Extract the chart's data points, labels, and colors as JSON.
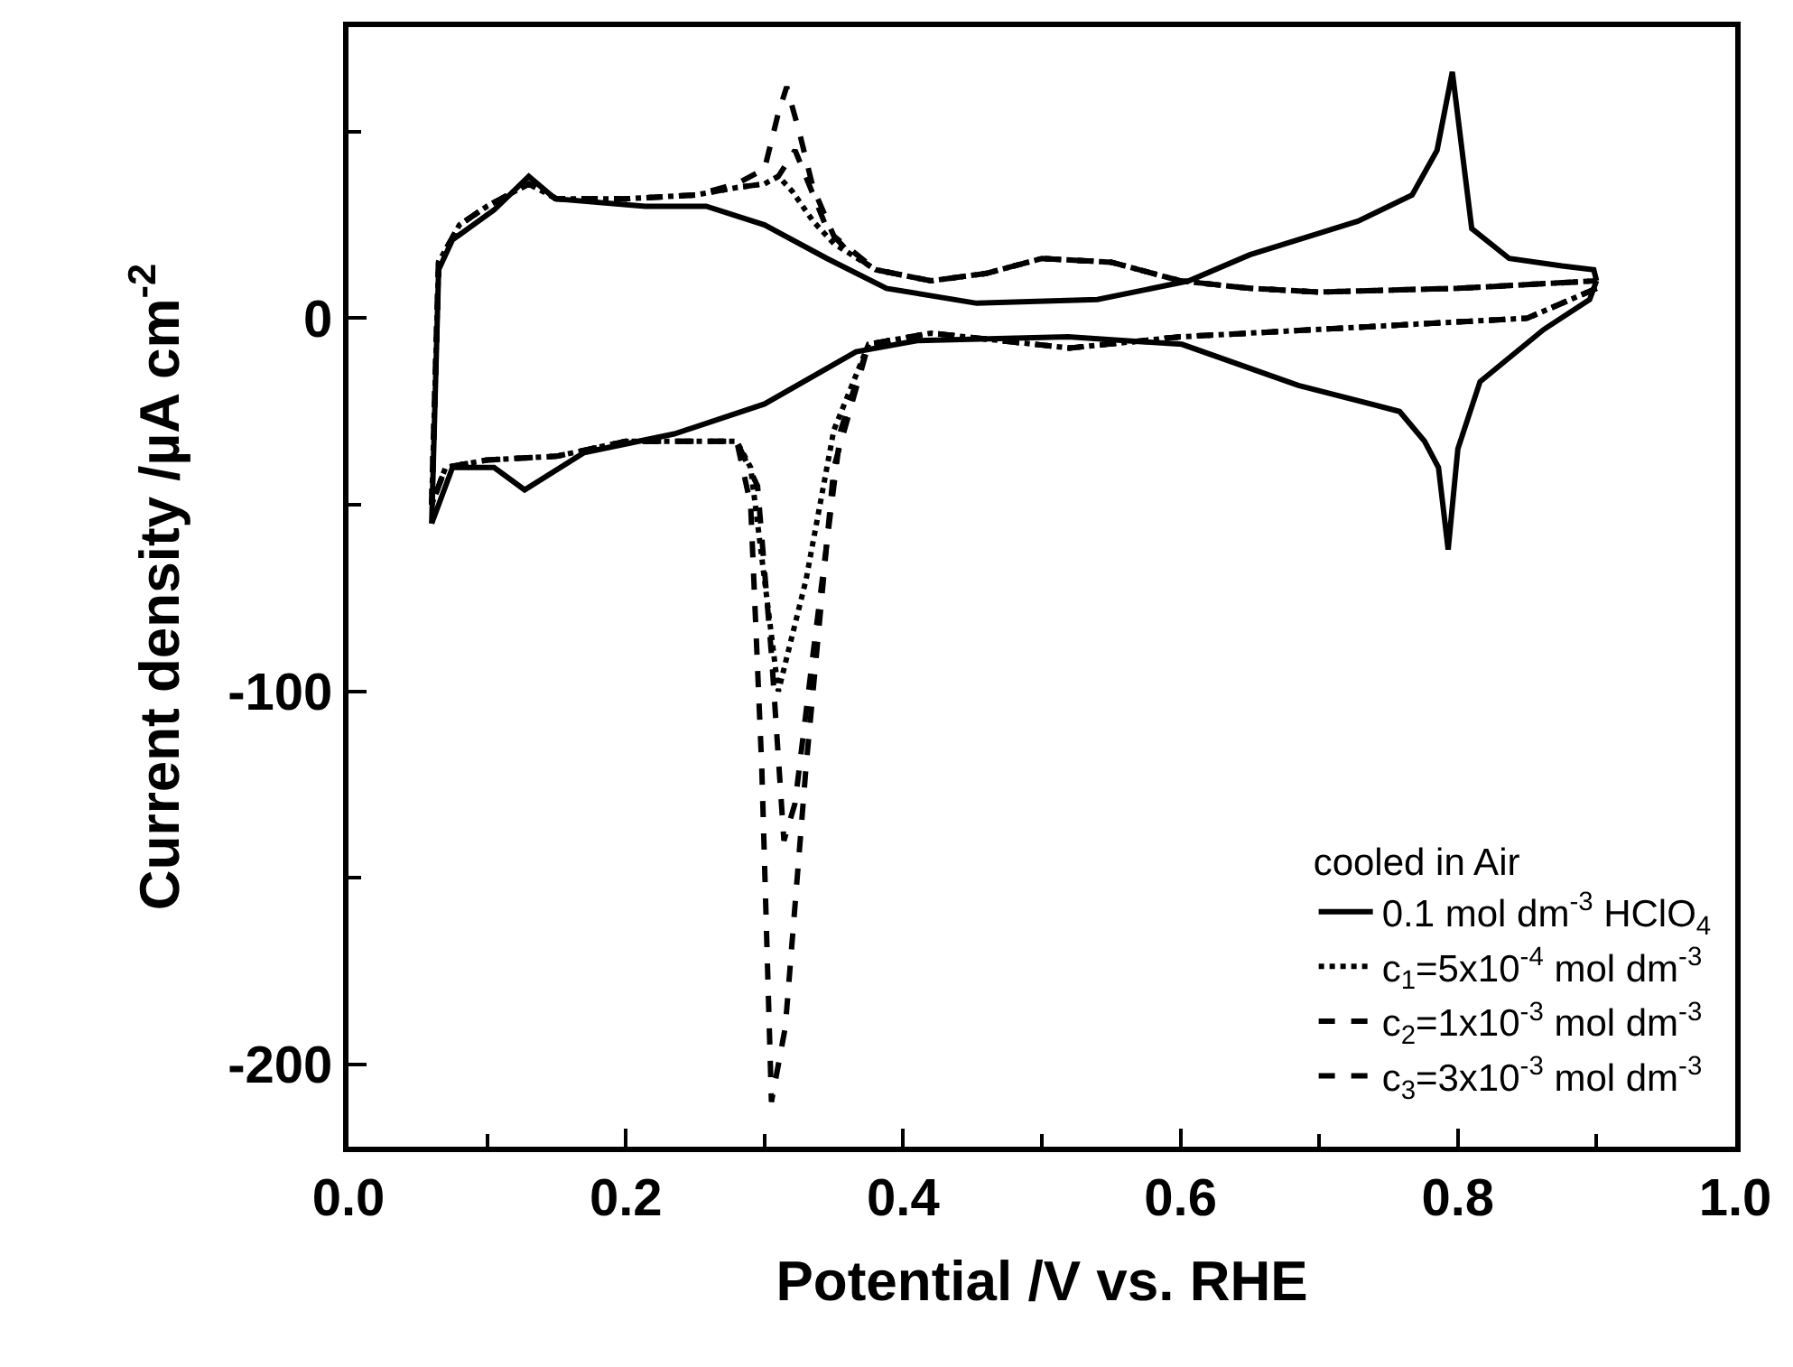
{
  "chart_data": {
    "type": "line",
    "xlabel": "Potential /V vs. RHE",
    "ylabel": "Current density /µA cm$^{-2}$",
    "legend_title": "cooled in Air",
    "legend": "bottom right",
    "grid": false,
    "marker": "none",
    "xlim": [
      0,
      1.0
    ],
    "ylim": [
      -222,
      78
    ],
    "xticks": [
      {
        "value": 0,
        "label": "0.0"
      },
      {
        "value": 0.1,
        "label": null
      },
      {
        "value": 0.2,
        "label": "0.2"
      },
      {
        "value": 0.3,
        "label": null
      },
      {
        "value": 0.4,
        "label": "0.4"
      },
      {
        "value": 0.5,
        "label": null
      },
      {
        "value": 0.6,
        "label": "0.6"
      },
      {
        "value": 0.7,
        "label": null
      },
      {
        "value": 0.8,
        "label": "0.8"
      },
      {
        "value": 0.9,
        "label": null
      },
      {
        "value": 1.0,
        "label": "1.0"
      }
    ],
    "yticks": [
      {
        "value": 50,
        "label": null
      },
      0,
      {
        "value": -50,
        "label": null
      },
      -100,
      {
        "value": -150,
        "label": null
      },
      -200
    ],
    "series": [
      {
        "name": "0.1 mol dm$^{-3}$ HClO$_{4}$",
        "color": "#000000",
        "line_style": "solid",
        "x": [
          0.06,
          0.065,
          0.075,
          0.105,
          0.13,
          0.149,
          0.214,
          0.258,
          0.3,
          0.345,
          0.388,
          0.453,
          0.54,
          0.606,
          0.65,
          0.728,
          0.767,
          0.785,
          0.796,
          0.803,
          0.81,
          0.837,
          0.875,
          0.898,
          0.9
        ],
        "values": [
          -55,
          13,
          21,
          29,
          38,
          32,
          30,
          30,
          25,
          16,
          8,
          4,
          5,
          10,
          17,
          26,
          33,
          45,
          66,
          45,
          24,
          16,
          14,
          13,
          10
        ]
      },
      {
        "color": "#000000",
        "line_style": "solid",
        "x": [
          0.9,
          0.895,
          0.862,
          0.816,
          0.8,
          0.793,
          0.786,
          0.776,
          0.758,
          0.685,
          0.601,
          0.519,
          0.41,
          0.366,
          0.3,
          0.235,
          0.17,
          0.127,
          0.105,
          0.075,
          0.06
        ],
        "values": [
          10,
          5,
          -3,
          -17,
          -35,
          -62,
          -40,
          -33,
          -25,
          -18,
          -7,
          -5,
          -6,
          -9,
          -23,
          -31,
          -36,
          -46,
          -40,
          -40,
          -55
        ]
      },
      {
        "name": "c$_{1}$=5x10$^{-4}$ mol dm$^{-3}$",
        "color": "#000000",
        "line_style": "dotted",
        "x": [
          0.06,
          0.065,
          0.08,
          0.1,
          0.13,
          0.15,
          0.2,
          0.25,
          0.28,
          0.3,
          0.31,
          0.32,
          0.335,
          0.35,
          0.38,
          0.42,
          0.46,
          0.5,
          0.55,
          0.6,
          0.65,
          0.7,
          0.8,
          0.9
        ],
        "values": [
          -50,
          15,
          25,
          30,
          36,
          32,
          32,
          33,
          35,
          36,
          38,
          34,
          26,
          20,
          13,
          10,
          12,
          16,
          15,
          10,
          8,
          7,
          8,
          10
        ]
      },
      {
        "color": "#000000",
        "line_style": "dotted",
        "x": [
          0.9,
          0.85,
          0.7,
          0.6,
          0.52,
          0.42,
          0.375,
          0.35,
          0.33,
          0.31,
          0.3,
          0.29,
          0.28,
          0.2,
          0.15,
          0.1,
          0.07,
          0.06
        ],
        "values": [
          8,
          0,
          -3,
          -5,
          -8,
          -4,
          -7,
          -30,
          -70,
          -100,
          -70,
          -40,
          -33,
          -33,
          -37,
          -38,
          -40,
          -50
        ]
      },
      {
        "name": "c$_{2}$=1x10$^{-3}$ mol dm$^{-3}$",
        "color": "#000000",
        "line_style": "dashed",
        "x": [
          0.06,
          0.065,
          0.08,
          0.1,
          0.13,
          0.15,
          0.2,
          0.25,
          0.28,
          0.3,
          0.31,
          0.322,
          0.333,
          0.345,
          0.36,
          0.38,
          0.42,
          0.46,
          0.5,
          0.55,
          0.6,
          0.65,
          0.7,
          0.8,
          0.9
        ],
        "values": [
          -50,
          15,
          25,
          30,
          36,
          32,
          32,
          33,
          35,
          36,
          38,
          45,
          35,
          24,
          18,
          13,
          10,
          12,
          16,
          15,
          10,
          8,
          7,
          8,
          10
        ]
      },
      {
        "color": "#000000",
        "line_style": "dashed",
        "x": [
          0.9,
          0.85,
          0.7,
          0.6,
          0.52,
          0.42,
          0.375,
          0.355,
          0.335,
          0.322,
          0.314,
          0.305,
          0.295,
          0.28,
          0.2,
          0.15,
          0.1,
          0.07,
          0.06
        ],
        "values": [
          8,
          0,
          -3,
          -5,
          -8,
          -4,
          -7,
          -30,
          -90,
          -130,
          -140,
          -90,
          -45,
          -33,
          -33,
          -37,
          -38,
          -40,
          -50
        ]
      },
      {
        "name": "c$_{3}$=3x10$^{-3}$ mol dm$^{-3}$",
        "color": "#000000",
        "line_style": "dashed",
        "x": [
          0.06,
          0.065,
          0.08,
          0.1,
          0.13,
          0.15,
          0.2,
          0.25,
          0.28,
          0.3,
          0.31,
          0.316,
          0.325,
          0.335,
          0.35,
          0.38,
          0.42,
          0.46,
          0.5,
          0.55,
          0.6,
          0.65,
          0.7,
          0.8,
          0.9
        ],
        "values": [
          -50,
          15,
          25,
          30,
          36,
          32,
          32,
          33,
          36,
          40,
          55,
          62,
          50,
          35,
          22,
          13,
          10,
          12,
          16,
          15,
          10,
          8,
          7,
          8,
          10
        ]
      },
      {
        "color": "#000000",
        "line_style": "dashed",
        "x": [
          0.9,
          0.85,
          0.7,
          0.6,
          0.52,
          0.42,
          0.375,
          0.35,
          0.33,
          0.315,
          0.305,
          0.298,
          0.29,
          0.28,
          0.2,
          0.15,
          0.1,
          0.07,
          0.06
        ],
        "values": [
          8,
          0,
          -3,
          -5,
          -8,
          -4,
          -7,
          -40,
          -120,
          -190,
          -210,
          -120,
          -50,
          -33,
          -33,
          -37,
          -38,
          -40,
          -50
        ]
      }
    ]
  }
}
